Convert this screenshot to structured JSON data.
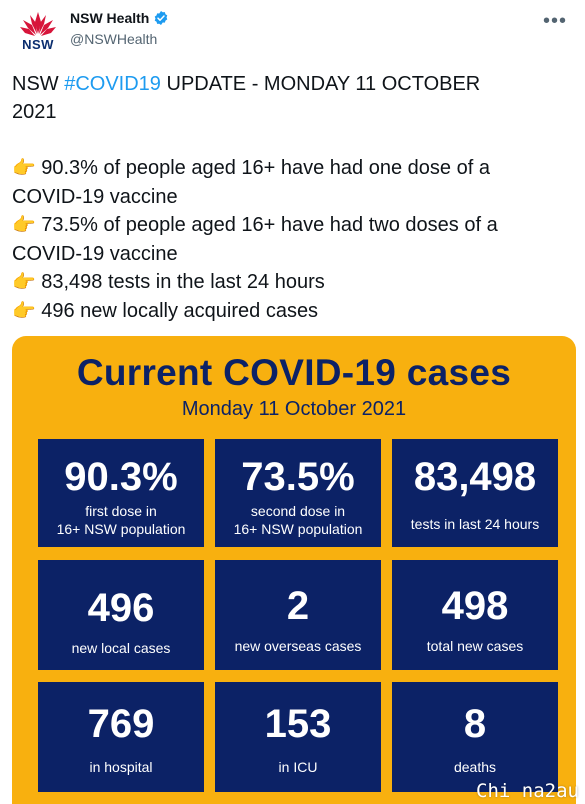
{
  "account": {
    "display_name": "NSW Health",
    "handle": "@NSWHealth",
    "logo_text": "NSW",
    "more_icon": "•••"
  },
  "tweet": {
    "line1_prefix": "NSW ",
    "hashtag": "#COVID19",
    "line1_suffix": " UPDATE - MONDAY 11 OCTOBER",
    "line2": "2021",
    "point_icon": "👉",
    "bullets": [
      {
        "a": "90.3% of people aged 16+ have had one dose of a",
        "b": "COVID-19 vaccine"
      },
      {
        "a": "73.5% of people aged 16+ have had two doses of a",
        "b": "COVID-19 vaccine"
      },
      {
        "a": "83,498 tests in the last 24 hours"
      },
      {
        "a": "496 new locally acquired cases"
      }
    ]
  },
  "card": {
    "title": "Current COVID-19 cases",
    "date": "Monday 11 October 2021",
    "tiles": [
      {
        "value": "90.3%",
        "label1": "first dose in",
        "label2": "16+ NSW population"
      },
      {
        "value": "73.5%",
        "label1": "second dose in",
        "label2": "16+ NSW population"
      },
      {
        "value": "83,498",
        "label1": "tests in last 24 hours"
      },
      {
        "value": "496",
        "label1": "new local cases"
      },
      {
        "value": "2",
        "label1": "new overseas cases"
      },
      {
        "value": "498",
        "label1": "total new cases"
      },
      {
        "value": "769",
        "label1": "in hospital"
      },
      {
        "value": "153",
        "label1": "in ICU"
      },
      {
        "value": "8",
        "label1": "deaths"
      }
    ]
  },
  "watermark": "Chi na2au",
  "colors": {
    "navy": "#0c2266",
    "amber": "#f8b00f",
    "link": "#1d9bf0",
    "verified": "#1d9bf0",
    "waratah_red": "#d7153a"
  }
}
